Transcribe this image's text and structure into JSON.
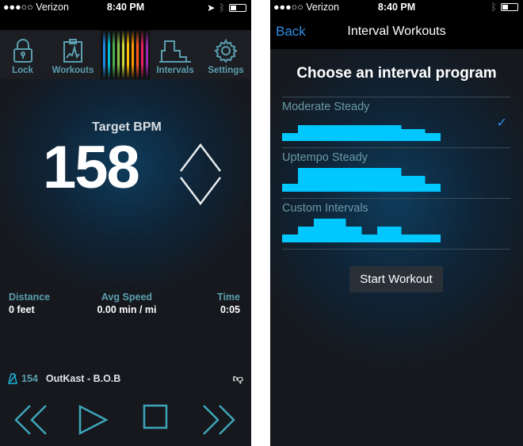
{
  "status": {
    "carrier": "●●●○○ Verizon",
    "time": "8:40 PM"
  },
  "left": {
    "tabs": [
      {
        "label": "Lock",
        "icon": "lock-icon"
      },
      {
        "label": "Workouts",
        "icon": "clipboard-icon"
      },
      {
        "label": "Intervals",
        "icon": "intervals-icon"
      },
      {
        "label": "Settings",
        "icon": "gear-icon"
      }
    ],
    "target_label": "Target BPM",
    "bpm": "158",
    "stats": [
      {
        "label": "Distance",
        "value": "0 feet"
      },
      {
        "label": "Avg Speed",
        "value": "0.00 min / mi"
      },
      {
        "label": "Time",
        "value": "0:05"
      }
    ],
    "song": {
      "tempo": "154",
      "title": "OutKast - B.O.B"
    },
    "colors": {
      "accent": "#5a9fae",
      "rainbow": [
        "#1e88e5",
        "#00bcd4",
        "#4caf50",
        "#8bc34a",
        "#cddc39",
        "#ffc107",
        "#ff9800",
        "#ff5722",
        "#e91e63",
        "#9c27b0"
      ]
    }
  },
  "right": {
    "back": "Back",
    "title": "Interval Workouts",
    "heading": "Choose an interval program",
    "programs": [
      {
        "name": "Moderate Steady",
        "selected": true,
        "profile": [
          2,
          2,
          4,
          4,
          4,
          4,
          4,
          4,
          4,
          4,
          4,
          4,
          4,
          4,
          4,
          3,
          3,
          3,
          2,
          2
        ]
      },
      {
        "name": "Uptempo Steady",
        "selected": false,
        "profile": [
          2,
          2,
          6,
          6,
          6,
          6,
          6,
          6,
          6,
          6,
          6,
          6,
          6,
          6,
          6,
          4,
          4,
          4,
          2,
          2
        ]
      },
      {
        "name": "Custom Intervals",
        "selected": false,
        "profile": [
          2,
          2,
          4,
          4,
          6,
          6,
          6,
          6,
          4,
          4,
          2,
          2,
          4,
          4,
          4,
          2,
          2,
          2,
          2,
          2
        ]
      }
    ],
    "check": "✓",
    "start": "Start Workout",
    "bar_color": "#00c8ff"
  }
}
